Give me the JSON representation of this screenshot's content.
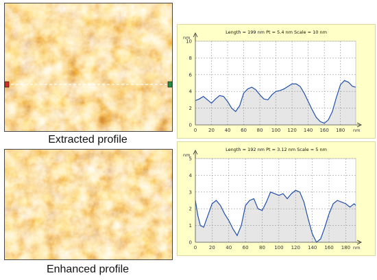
{
  "captions": {
    "top": "Extracted profile",
    "bottom": "Enhanced profile"
  },
  "colors": {
    "panel_bg": "#ffffc8",
    "plot_bg": "#ffffff",
    "curve": "#1f4fa8",
    "fill": "#e6e6e6",
    "grid": "#9a9a9a",
    "marker_left": "#d03020",
    "marker_right": "#209040"
  },
  "chart_data": [
    {
      "type": "area",
      "title": "Length = 199 nm  Pt = 5.4 nm  Scale = 10 nm",
      "xunit": "nm",
      "yunit": "nm",
      "xlim": [
        0,
        199
      ],
      "ylim": [
        0,
        10
      ],
      "xticks": [
        0,
        20,
        40,
        60,
        80,
        100,
        120,
        140,
        160,
        180
      ],
      "yticks": [
        0,
        2,
        4,
        6,
        8,
        10
      ],
      "grid": true,
      "series": [
        {
          "x": [
            0,
            5,
            10,
            15,
            20,
            25,
            30,
            35,
            40,
            45,
            50,
            55,
            60,
            65,
            70,
            75,
            80,
            85,
            90,
            95,
            100,
            105,
            110,
            115,
            120,
            125,
            130,
            135,
            140,
            145,
            150,
            155,
            160,
            165,
            170,
            175,
            180,
            185,
            190,
            195,
            199
          ],
          "y": [
            2.9,
            3.1,
            3.4,
            3.0,
            2.6,
            3.1,
            3.5,
            3.4,
            2.8,
            2.0,
            1.6,
            2.3,
            3.8,
            4.3,
            4.5,
            4.2,
            3.6,
            3.1,
            3.0,
            3.6,
            4.0,
            4.1,
            4.3,
            4.6,
            4.9,
            4.9,
            4.6,
            3.8,
            2.8,
            1.8,
            0.9,
            0.4,
            0.2,
            0.6,
            1.6,
            3.3,
            4.8,
            5.3,
            5.1,
            4.6,
            4.5
          ]
        }
      ]
    },
    {
      "type": "area",
      "title": "Length = 192 nm  Pt = 3.12 nm  Scale = 5 nm",
      "xunit": "nm",
      "yunit": "nm",
      "xlim": [
        0,
        192
      ],
      "ylim": [
        0,
        5
      ],
      "xticks": [
        0,
        20,
        40,
        60,
        80,
        100,
        120,
        140,
        160,
        180
      ],
      "yticks": [
        0,
        1,
        2,
        3,
        4,
        5
      ],
      "grid": true,
      "series": [
        {
          "x": [
            0,
            3,
            6,
            10,
            15,
            20,
            25,
            30,
            35,
            40,
            45,
            50,
            55,
            60,
            65,
            70,
            75,
            80,
            85,
            90,
            95,
            100,
            105,
            110,
            115,
            120,
            125,
            130,
            135,
            140,
            145,
            150,
            155,
            160,
            165,
            170,
            175,
            180,
            185,
            190,
            192
          ],
          "y": [
            2.5,
            1.6,
            1.0,
            0.9,
            1.6,
            2.3,
            2.5,
            2.2,
            1.7,
            1.3,
            0.8,
            0.4,
            1.0,
            2.2,
            2.5,
            2.6,
            2.0,
            1.9,
            2.4,
            3.0,
            2.9,
            2.8,
            2.9,
            2.6,
            2.9,
            3.1,
            3.0,
            2.4,
            1.4,
            0.5,
            0.0,
            0.2,
            0.9,
            1.7,
            2.3,
            2.5,
            2.4,
            2.3,
            2.1,
            2.3,
            2.2
          ]
        }
      ]
    }
  ]
}
